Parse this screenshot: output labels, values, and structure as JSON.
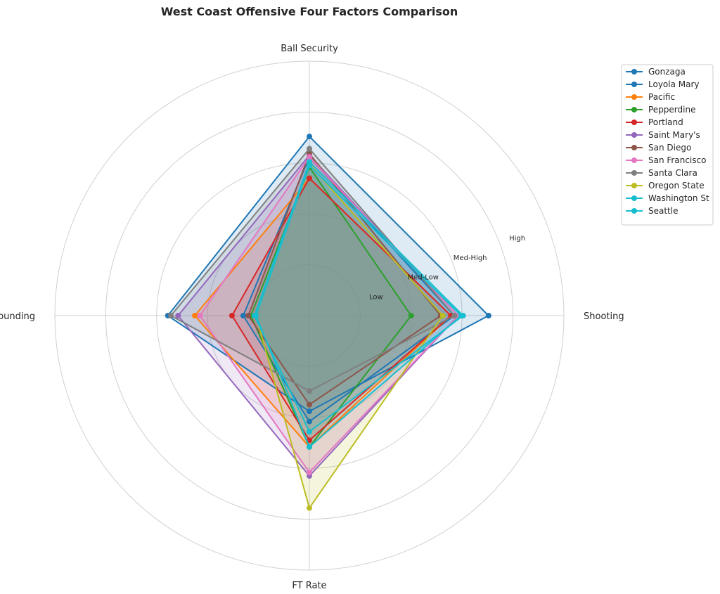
{
  "chart_data": {
    "type": "radar",
    "title": "West Coast Offensive Four Factors Comparison",
    "axes": [
      "Ball Security",
      "Shooting",
      "FT Rate",
      "Off Rebounding"
    ],
    "rings": [
      "Low",
      "Med-Low",
      "Med-High",
      "High"
    ],
    "rmax": 5,
    "legend_position": "upper right, outside plot",
    "series": [
      {
        "name": "Gonzaga",
        "color": "#1f77b4",
        "values": [
          3.52,
          3.52,
          1.88,
          2.78
        ]
      },
      {
        "name": "Loyola Mary",
        "color": "#1f77b4",
        "values": [
          3.12,
          2.85,
          2.08,
          1.3
        ]
      },
      {
        "name": "Pacific",
        "color": "#ff7f0e",
        "values": [
          2.7,
          2.78,
          2.58,
          2.25
        ]
      },
      {
        "name": "Pepperdine",
        "color": "#2ca02c",
        "values": [
          2.92,
          2.0,
          2.58,
          1.15
        ]
      },
      {
        "name": "Portland",
        "color": "#d62728",
        "values": [
          2.7,
          2.78,
          2.45,
          1.52
        ]
      },
      {
        "name": "Saint Mary's",
        "color": "#9467bd",
        "values": [
          3.15,
          2.92,
          3.15,
          2.58
        ]
      },
      {
        "name": "San Diego",
        "color": "#8c564b",
        "values": [
          3.18,
          2.58,
          1.75,
          1.2
        ]
      },
      {
        "name": "San Francisco",
        "color": "#e377c2",
        "values": [
          3.12,
          2.92,
          3.08,
          2.15
        ]
      },
      {
        "name": "Santa Clara",
        "color": "#7f7f7f",
        "values": [
          3.28,
          2.85,
          1.48,
          2.72
        ]
      },
      {
        "name": "Oregon State",
        "color": "#bcbd22",
        "values": [
          2.98,
          2.62,
          3.78,
          1.05
        ]
      },
      {
        "name": "Washington St",
        "color": "#17becf",
        "values": [
          2.95,
          2.98,
          2.58,
          1.05
        ]
      },
      {
        "name": "Seattle",
        "color": "#17becf",
        "values": [
          3.02,
          3.02,
          2.28,
          1.08
        ]
      }
    ]
  }
}
